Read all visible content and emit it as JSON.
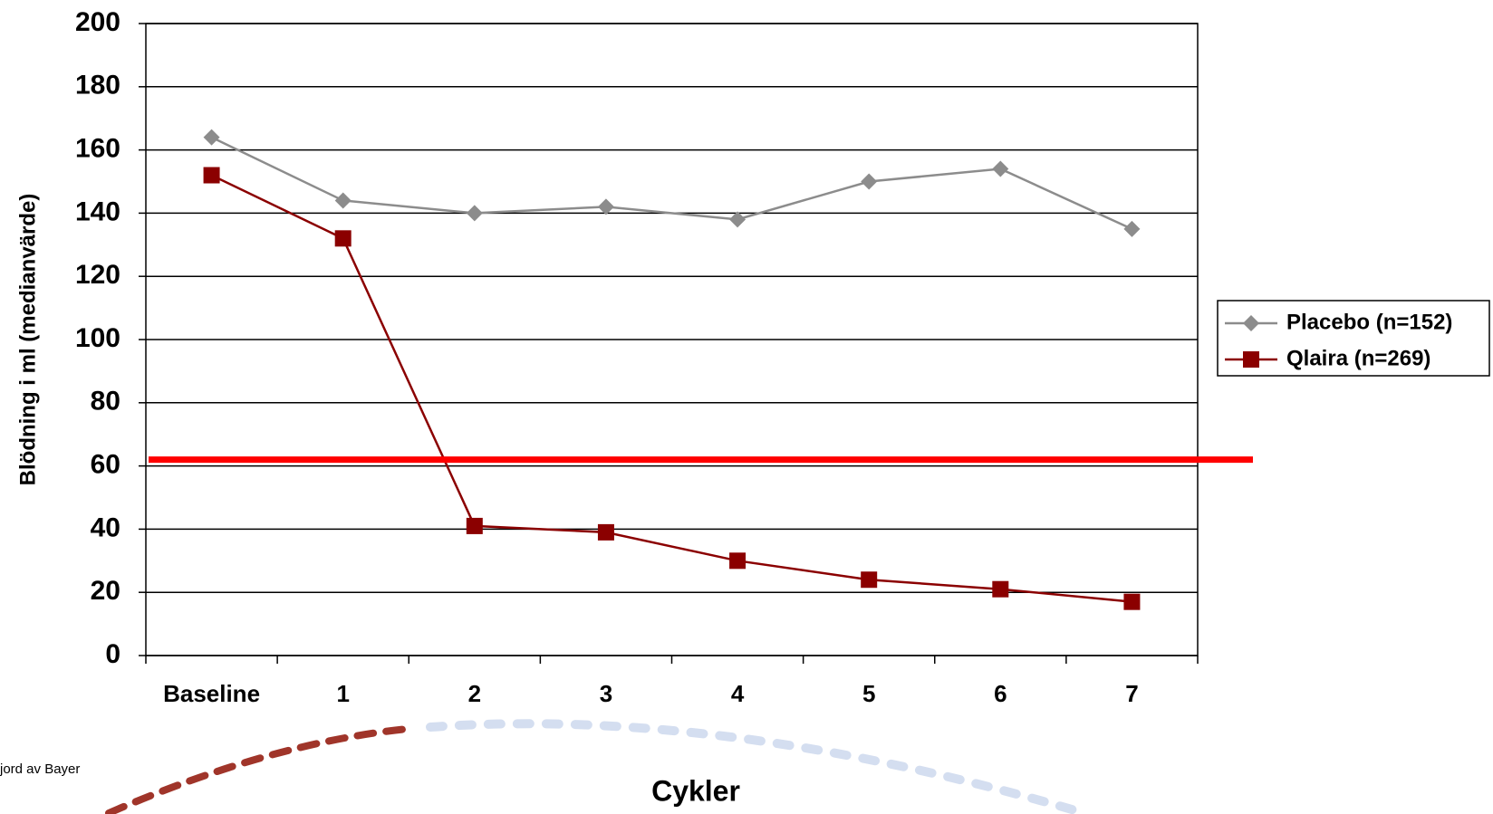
{
  "chart_data": {
    "type": "line",
    "y_label": "Blödning i ml (medianvärde)",
    "x_label": "Cykler",
    "categories": [
      "Baseline",
      "1",
      "2",
      "3",
      "4",
      "5",
      "6",
      "7"
    ],
    "series": [
      {
        "name": "Placebo (n=152)",
        "color": "#8c8c8c",
        "marker": "diamond",
        "values": [
          164,
          144,
          140,
          142,
          138,
          150,
          154,
          135
        ]
      },
      {
        "name": "Qlaira (n=269)",
        "color": "#8b0000",
        "marker": "square",
        "values": [
          152,
          132,
          41,
          39,
          30,
          24,
          21,
          17
        ]
      }
    ],
    "reference_line": {
      "value": 62,
      "color": "#ff0000"
    },
    "ylim": [
      0,
      200
    ],
    "yticks": [
      0,
      20,
      40,
      60,
      80,
      100,
      120,
      140,
      160,
      180,
      200
    ],
    "grid": true,
    "legend": "right",
    "footer": "jord av Bayer"
  }
}
